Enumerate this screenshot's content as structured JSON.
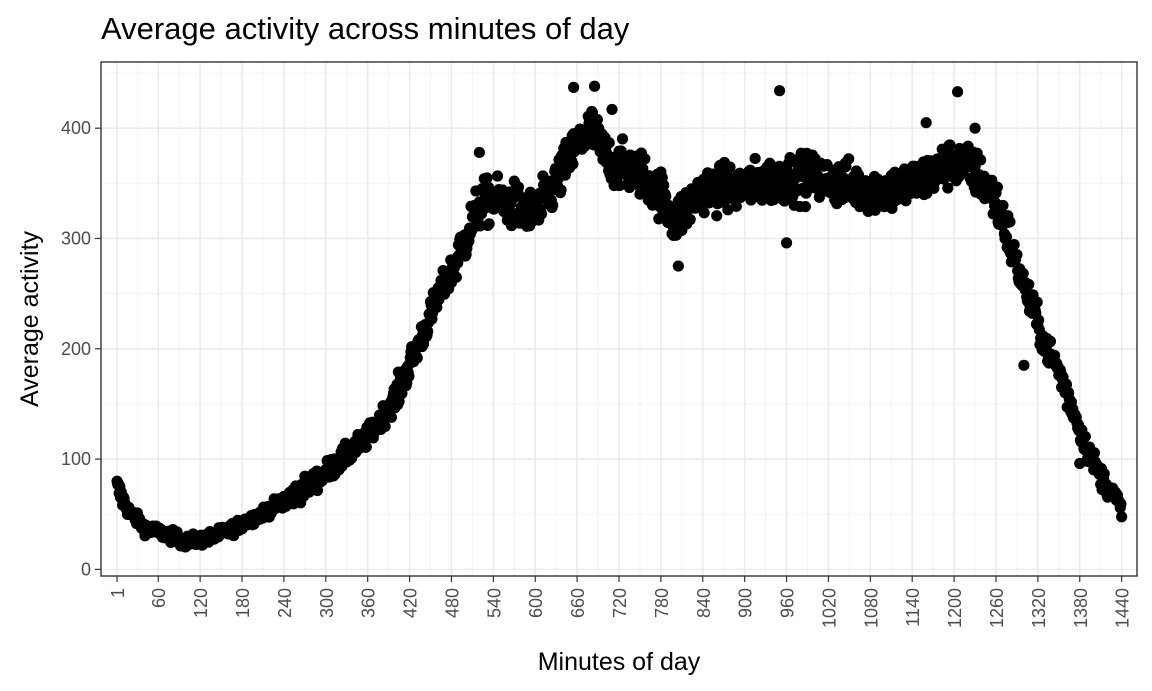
{
  "chart_data": {
    "type": "scatter",
    "title": "Average activity across minutes of day",
    "xlabel": "Minutes of day",
    "ylabel": "Average activity",
    "xlim": [
      -22,
      1462
    ],
    "ylim": [
      -6,
      460
    ],
    "x_ticks": [
      1,
      60,
      120,
      180,
      240,
      300,
      360,
      420,
      480,
      540,
      600,
      660,
      720,
      780,
      840,
      900,
      960,
      1020,
      1080,
      1140,
      1200,
      1260,
      1320,
      1380,
      1440
    ],
    "x_tick_labels": [
      "1",
      "60",
      "120",
      "180",
      "240",
      "300",
      "360",
      "420",
      "480",
      "540",
      "600",
      "660",
      "720",
      "780",
      "840",
      "900",
      "960",
      "1020",
      "1080",
      "1140",
      "1200",
      "1260",
      "1320",
      "1380",
      "1440"
    ],
    "y_ticks": [
      0,
      100,
      200,
      300,
      400
    ],
    "y_tick_labels": [
      "0",
      "100",
      "200",
      "300",
      "400"
    ],
    "grid": true,
    "point_color": "#000000",
    "trend_anchors": [
      [
        1,
        75
      ],
      [
        15,
        55
      ],
      [
        40,
        38
      ],
      [
        80,
        30
      ],
      [
        100,
        25
      ],
      [
        130,
        28
      ],
      [
        160,
        35
      ],
      [
        200,
        48
      ],
      [
        240,
        62
      ],
      [
        280,
        78
      ],
      [
        320,
        98
      ],
      [
        360,
        120
      ],
      [
        400,
        155
      ],
      [
        420,
        185
      ],
      [
        440,
        215
      ],
      [
        460,
        245
      ],
      [
        480,
        270
      ],
      [
        500,
        300
      ],
      [
        520,
        330
      ],
      [
        540,
        335
      ],
      [
        570,
        330
      ],
      [
        600,
        320
      ],
      [
        630,
        350
      ],
      [
        660,
        385
      ],
      [
        680,
        400
      ],
      [
        700,
        375
      ],
      [
        720,
        365
      ],
      [
        750,
        360
      ],
      [
        780,
        340
      ],
      [
        800,
        315
      ],
      [
        820,
        330
      ],
      [
        840,
        345
      ],
      [
        880,
        345
      ],
      [
        920,
        350
      ],
      [
        960,
        355
      ],
      [
        1000,
        355
      ],
      [
        1040,
        350
      ],
      [
        1080,
        345
      ],
      [
        1120,
        345
      ],
      [
        1160,
        355
      ],
      [
        1200,
        370
      ],
      [
        1230,
        360
      ],
      [
        1250,
        345
      ],
      [
        1270,
        320
      ],
      [
        1290,
        275
      ],
      [
        1310,
        240
      ],
      [
        1330,
        205
      ],
      [
        1350,
        180
      ],
      [
        1370,
        145
      ],
      [
        1390,
        110
      ],
      [
        1410,
        85
      ],
      [
        1430,
        65
      ],
      [
        1440,
        55
      ]
    ],
    "outliers": [
      [
        655,
        437
      ],
      [
        685,
        438
      ],
      [
        950,
        434
      ],
      [
        1205,
        433
      ],
      [
        710,
        417
      ],
      [
        1160,
        405
      ],
      [
        1230,
        400
      ],
      [
        520,
        378
      ],
      [
        805,
        275
      ],
      [
        960,
        296
      ],
      [
        1300,
        185
      ],
      [
        1380,
        96
      ]
    ]
  }
}
